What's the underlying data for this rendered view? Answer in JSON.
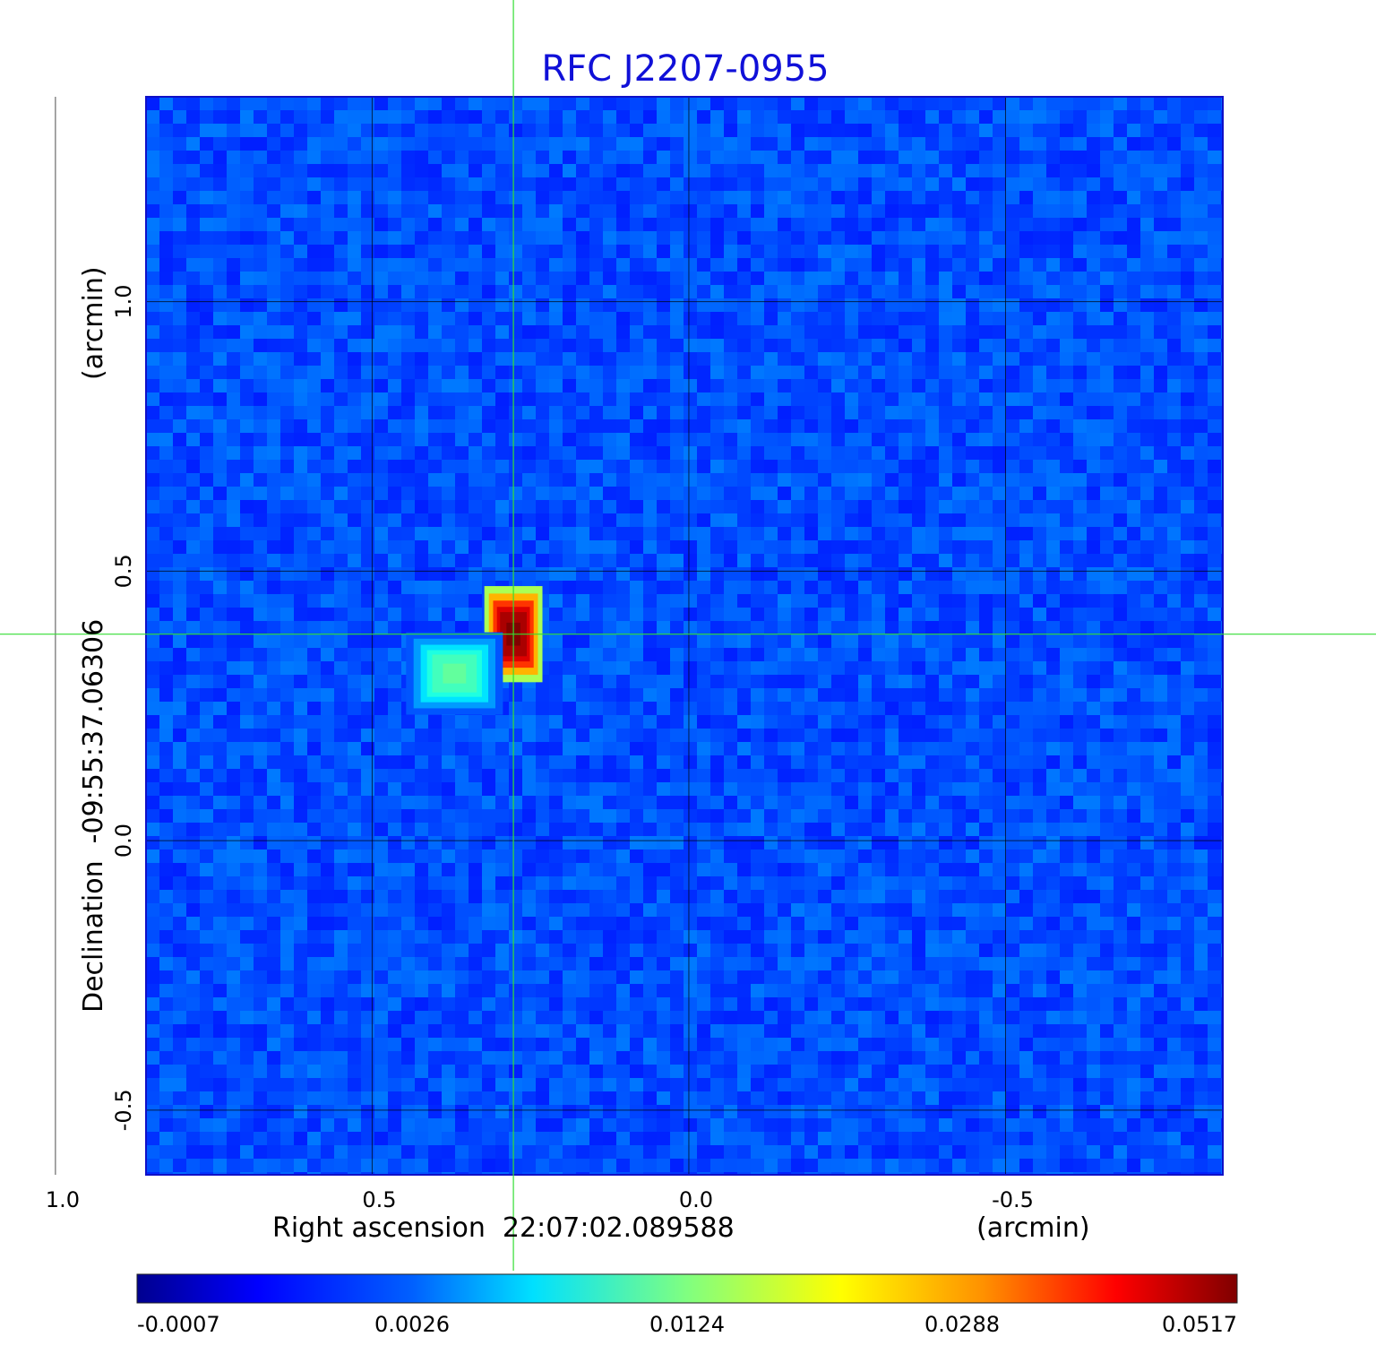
{
  "chart_data": {
    "type": "heatmap",
    "title": "RFC J2207-0955",
    "xlabel": "Right ascension  22:07:02.089588",
    "xunit": "(arcmin)",
    "ylabel": "Declination  -09:55:37.06306",
    "yunit": "(arcmin)",
    "xlim": [
      0.857,
      -0.843
    ],
    "ylim": [
      -0.62,
      1.38
    ],
    "x_ticks": [
      1.0,
      0.5,
      0.0,
      -0.5
    ],
    "x_tick_labels": [
      "1.0",
      "0.5",
      "0.0",
      "-0.5"
    ],
    "y_ticks": [
      1.0,
      0.5,
      0.0,
      -0.5
    ],
    "y_tick_labels": [
      "1.0",
      "0.5",
      "0.0",
      "-0.5"
    ],
    "grid": true,
    "crosshair": {
      "x": 0.277,
      "y": 0.383,
      "color": "#33dd33"
    },
    "colormap": "jet",
    "colorbar_ticks": [
      "-0.0007",
      "0.0026",
      "0.0124",
      "0.0288",
      "0.0517"
    ],
    "colorbar_range": [
      -0.0007,
      0.0517
    ],
    "sources": [
      {
        "x": 0.277,
        "y": 0.383,
        "peak": 0.0517,
        "sigma_x": 0.018,
        "sigma_y": 0.035
      },
      {
        "x": 0.37,
        "y": 0.31,
        "peak": 0.0055,
        "sigma_x": 0.03,
        "sigma_y": 0.03
      }
    ],
    "background_level": 0.0
  }
}
